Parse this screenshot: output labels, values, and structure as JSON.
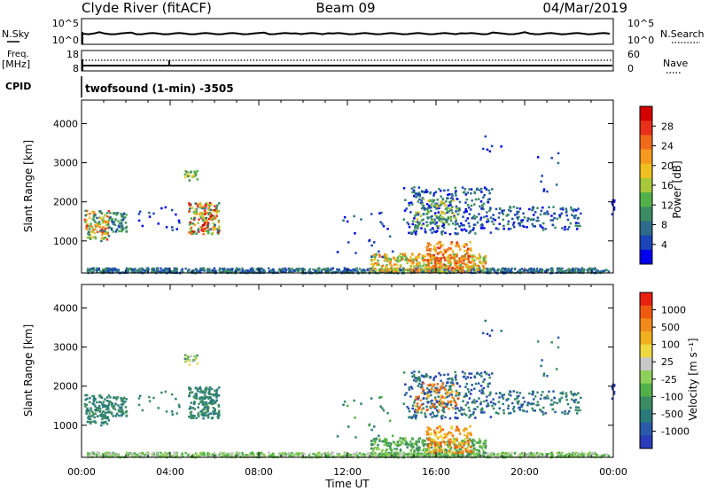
{
  "header": {
    "station": "Clyde River (fitACF)",
    "beam": "Beam 09",
    "date": "04/Mar/2019"
  },
  "status_panels": {
    "nsky_label": "N.Sky",
    "nsearch_label": "N.Search",
    "nsky_ticks": [
      "10^5",
      "10^0"
    ],
    "nsearch_ticks": [
      "10^5",
      "10^0"
    ],
    "freq_label_1": "Freq.",
    "freq_label_2": "[MHz]",
    "freq_ticks": [
      "18",
      "8"
    ],
    "nave_ticks": [
      "60",
      "0"
    ],
    "nave_label": "Nave",
    "cpid_label": "CPID",
    "cpid_text": "twofsound (1-min) -3505"
  },
  "chart_data": [
    {
      "type": "heatmap",
      "name": "power",
      "ylabel": "Slant Range [km]",
      "yticks": [
        "4000",
        "3000",
        "2000",
        "1000"
      ],
      "ylim": [
        180,
        4600
      ],
      "xlim": [
        0,
        24
      ],
      "colorbar_label": "Power [dB]",
      "colorbar_ticks": [
        "28",
        "24",
        "20",
        "16",
        "12",
        "8",
        "4"
      ],
      "colorbar_colors": [
        "#0000ee",
        "#1a44b8",
        "#2e6b8a",
        "#3c8c62",
        "#52b04a",
        "#a6c83a",
        "#f0c020",
        "#f59a1e",
        "#f06a1a",
        "#e8301a",
        "#d40000"
      ]
    },
    {
      "type": "heatmap",
      "name": "velocity",
      "ylabel": "Slant Range [km]",
      "yticks": [
        "4000",
        "3000",
        "2000",
        "1000"
      ],
      "ylim": [
        180,
        4600
      ],
      "xlim": [
        0,
        24
      ],
      "colorbar_label": "Velocity [m s⁻¹]",
      "colorbar_ticks": [
        "1000",
        "500",
        "100",
        "25",
        "-25",
        "-100",
        "-500",
        "-1000"
      ],
      "colorbar_colors": [
        "#2a3cb8",
        "#2a5aa8",
        "#2a7a7a",
        "#3c8c62",
        "#52b04a",
        "#8ed05a",
        "#c8c8c8",
        "#f0d840",
        "#f0b020",
        "#f08a1a",
        "#f05a10",
        "#e82010"
      ]
    }
  ],
  "x_axis": {
    "ticks": [
      "00:00",
      "04:00",
      "08:00",
      "12:00",
      "16:00",
      "20:00",
      "00:00"
    ],
    "label": "Time UT"
  }
}
